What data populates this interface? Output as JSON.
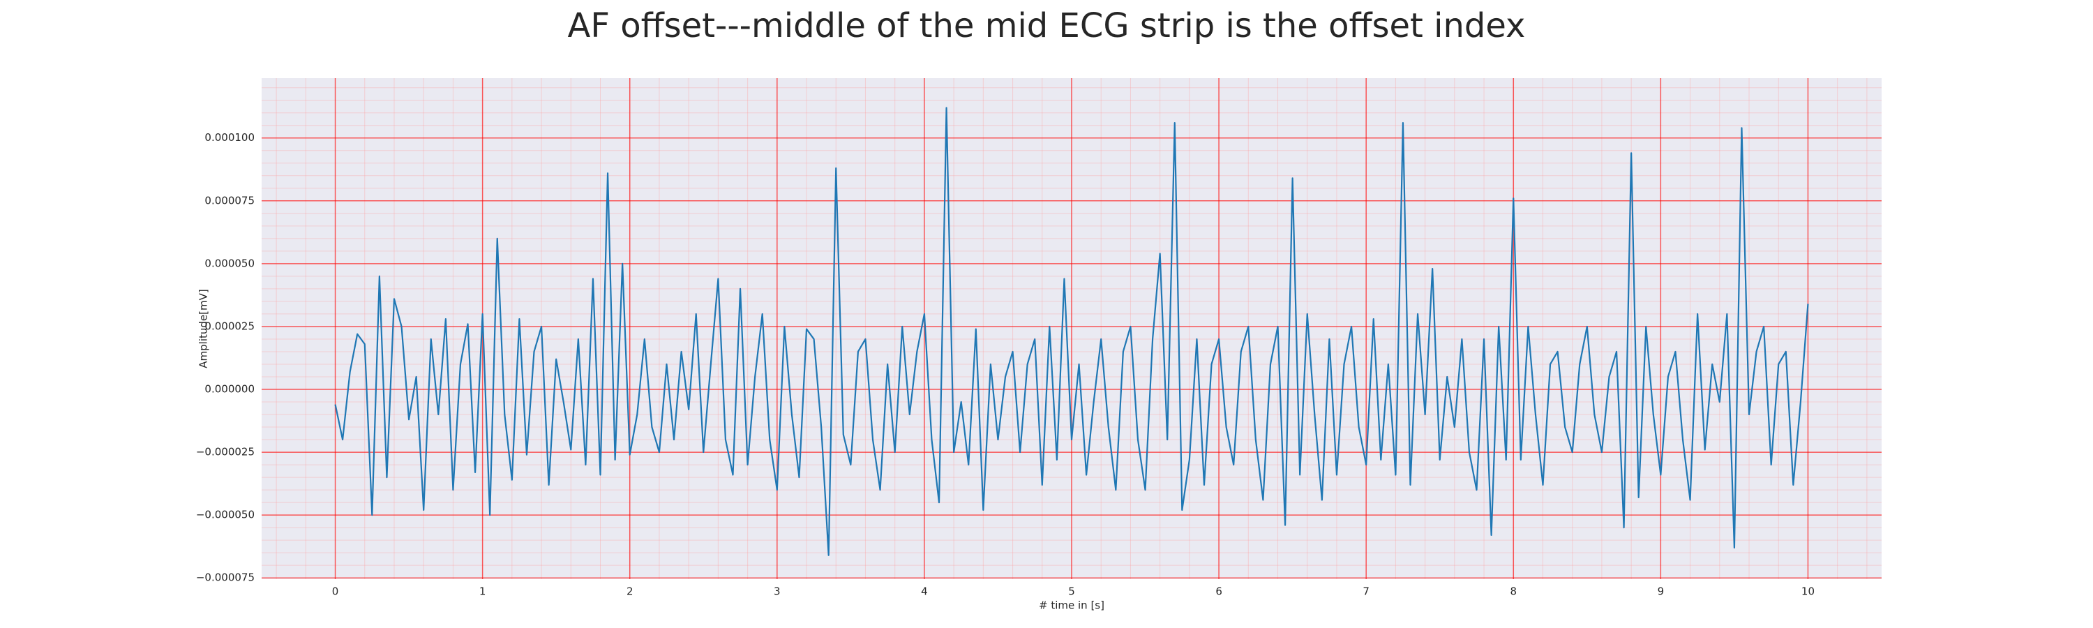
{
  "chart_data": {
    "type": "line",
    "title": "AF offset---middle of the mid ECG strip is the offset index",
    "xlabel": "# time in [s]",
    "ylabel": "Amplitude[mV]",
    "color": "#1f77b4",
    "grid": true,
    "minor_grid": true,
    "xlim": [
      -0.5,
      10.5
    ],
    "ylim": [
      -7.55e-05,
      0.0001238
    ],
    "xticks": [
      0,
      1,
      2,
      3,
      4,
      5,
      6,
      7,
      8,
      9,
      10
    ],
    "yticks": [
      {
        "value": -7.5e-05,
        "label": "−0.000075"
      },
      {
        "value": -5e-05,
        "label": "−0.000050"
      },
      {
        "value": -2.5e-05,
        "label": "−0.000025"
      },
      {
        "value": 0,
        "label": "0.000000"
      },
      {
        "value": 2.5e-05,
        "label": "0.000025"
      },
      {
        "value": 5e-05,
        "label": "0.000050"
      },
      {
        "value": 7.5e-05,
        "label": "0.000075"
      },
      {
        "value": 0.0001,
        "label": "0.000100"
      }
    ],
    "x": [
      0,
      0.05,
      0.1,
      0.15,
      0.2,
      0.25,
      0.3,
      0.35,
      0.4,
      0.45,
      0.5,
      0.55,
      0.6,
      0.65,
      0.7,
      0.75,
      0.8,
      0.85,
      0.9,
      0.95,
      1,
      1.05,
      1.1,
      1.15,
      1.2,
      1.25,
      1.3,
      1.35,
      1.4,
      1.45,
      1.5,
      1.55,
      1.6,
      1.65,
      1.7,
      1.75,
      1.8,
      1.85,
      1.9,
      1.95,
      2,
      2.05,
      2.1,
      2.15,
      2.2,
      2.25,
      2.3,
      2.35,
      2.4,
      2.45,
      2.5,
      2.55,
      2.6,
      2.65,
      2.7,
      2.75,
      2.8,
      2.85,
      2.9,
      2.95,
      3,
      3.05,
      3.1,
      3.15,
      3.2,
      3.25,
      3.3,
      3.35,
      3.4,
      3.45,
      3.5,
      3.55,
      3.6,
      3.65,
      3.7,
      3.75,
      3.8,
      3.85,
      3.9,
      3.95,
      4,
      4.05,
      4.1,
      4.15,
      4.2,
      4.25,
      4.3,
      4.35,
      4.4,
      4.45,
      4.5,
      4.55,
      4.6,
      4.65,
      4.7,
      4.75,
      4.8,
      4.85,
      4.9,
      4.95,
      5,
      5.05,
      5.1,
      5.15,
      5.2,
      5.25,
      5.3,
      5.35,
      5.4,
      5.45,
      5.5,
      5.55,
      5.6,
      5.65,
      5.7,
      5.75,
      5.8,
      5.85,
      5.9,
      5.95,
      6,
      6.05,
      6.1,
      6.15,
      6.2,
      6.25,
      6.3,
      6.35,
      6.4,
      6.45,
      6.5,
      6.55,
      6.6,
      6.65,
      6.7,
      6.75,
      6.8,
      6.85,
      6.9,
      6.95,
      7,
      7.05,
      7.1,
      7.15,
      7.2,
      7.25,
      7.3,
      7.35,
      7.4,
      7.45,
      7.5,
      7.55,
      7.6,
      7.65,
      7.7,
      7.75,
      7.8,
      7.85,
      7.9,
      7.95,
      8,
      8.05,
      8.1,
      8.15,
      8.2,
      8.25,
      8.3,
      8.35,
      8.4,
      8.45,
      8.5,
      8.55,
      8.6,
      8.65,
      8.7,
      8.75,
      8.8,
      8.85,
      8.9,
      8.95,
      9,
      9.05,
      9.1,
      9.15,
      9.2,
      9.25,
      9.3,
      9.35,
      9.4,
      9.45,
      9.5,
      9.55,
      9.6,
      9.65,
      9.7,
      9.75,
      9.8,
      9.85,
      9.9,
      9.95,
      10
    ],
    "values": [
      -6e-06,
      -2e-05,
      7e-06,
      2.2e-05,
      1.8e-05,
      -5e-05,
      4.5e-05,
      -3.5e-05,
      3.6e-05,
      2.5e-05,
      -1.2e-05,
      5e-06,
      -4.8e-05,
      2e-05,
      -1e-05,
      2.8e-05,
      -4e-05,
      1e-05,
      2.6e-05,
      -3.3e-05,
      3e-05,
      -5e-05,
      6e-05,
      -1e-05,
      -3.6e-05,
      2.8e-05,
      -2.6e-05,
      1.5e-05,
      2.5e-05,
      -3.8e-05,
      1.2e-05,
      -5e-06,
      -2.4e-05,
      2e-05,
      -3e-05,
      4.4e-05,
      -3.4e-05,
      8.6e-05,
      -2.8e-05,
      5e-05,
      -2.6e-05,
      -1e-05,
      2e-05,
      -1.5e-05,
      -2.5e-05,
      1e-05,
      -2e-05,
      1.5e-05,
      -8e-06,
      3e-05,
      -2.5e-05,
      1e-05,
      4.4e-05,
      -2e-05,
      -3.4e-05,
      4e-05,
      -3e-05,
      5e-06,
      3e-05,
      -2e-05,
      -4e-05,
      2.5e-05,
      -1e-05,
      -3.5e-05,
      2.4e-05,
      2e-05,
      -1.5e-05,
      -6.6e-05,
      8.8e-05,
      -1.8e-05,
      -3e-05,
      1.5e-05,
      2e-05,
      -2e-05,
      -4e-05,
      1e-05,
      -2.5e-05,
      2.5e-05,
      -1e-05,
      1.5e-05,
      3e-05,
      -2e-05,
      -4.5e-05,
      0.000112,
      -2.5e-05,
      -5e-06,
      -3e-05,
      2.4e-05,
      -4.8e-05,
      1e-05,
      -2e-05,
      5e-06,
      1.5e-05,
      -2.5e-05,
      1e-05,
      2e-05,
      -3.8e-05,
      2.5e-05,
      -2.8e-05,
      4.4e-05,
      -2e-05,
      1e-05,
      -3.4e-05,
      -5e-06,
      2e-05,
      -1.5e-05,
      -4e-05,
      1.5e-05,
      2.5e-05,
      -2e-05,
      -4e-05,
      2e-05,
      5.4e-05,
      -2e-05,
      0.000106,
      -4.8e-05,
      -2.8e-05,
      2e-05,
      -3.8e-05,
      1e-05,
      2e-05,
      -1.5e-05,
      -3e-05,
      1.5e-05,
      2.5e-05,
      -2e-05,
      -4.4e-05,
      1e-05,
      2.5e-05,
      -5.4e-05,
      8.4e-05,
      -3.4e-05,
      3e-05,
      -1e-05,
      -4.4e-05,
      2e-05,
      -3.4e-05,
      1e-05,
      2.5e-05,
      -1.5e-05,
      -3e-05,
      2.8e-05,
      -2.8e-05,
      1e-05,
      -3.4e-05,
      0.000106,
      -3.8e-05,
      3e-05,
      -1e-05,
      4.8e-05,
      -2.8e-05,
      5e-06,
      -1.5e-05,
      2e-05,
      -2.5e-05,
      -4e-05,
      2e-05,
      -5.8e-05,
      2.5e-05,
      -2.8e-05,
      7.6e-05,
      -2.8e-05,
      2.5e-05,
      -1e-05,
      -3.8e-05,
      1e-05,
      1.5e-05,
      -1.5e-05,
      -2.5e-05,
      1e-05,
      2.5e-05,
      -1e-05,
      -2.5e-05,
      5e-06,
      1.5e-05,
      -5.5e-05,
      9.4e-05,
      -4.3e-05,
      2.5e-05,
      -1e-05,
      -3.4e-05,
      5e-06,
      1.5e-05,
      -2e-05,
      -4.4e-05,
      3e-05,
      -2.4e-05,
      1e-05,
      -5e-06,
      3e-05,
      -6.3e-05,
      0.000104,
      -1e-05,
      1.5e-05,
      2.5e-05,
      -3e-05,
      1e-05,
      1.5e-05,
      -3.8e-05,
      -5e-06,
      3.4e-05
    ]
  }
}
